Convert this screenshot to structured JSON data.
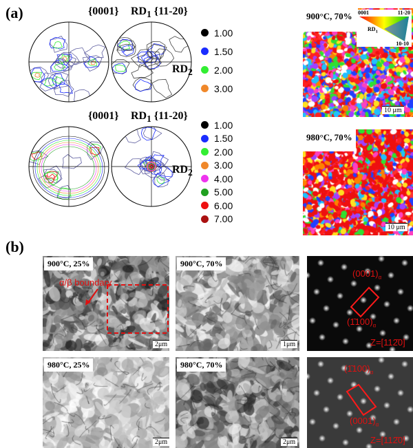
{
  "panel_a": {
    "label": "(a)",
    "row1": {
      "pf1_title": "{0001}",
      "pf2_title_rd": "RD",
      "pf2_title_sub": "1",
      "pf2_title_plane": "{11-20}",
      "rd2": "RD",
      "rd2_sub": "2",
      "legend": [
        {
          "value": "1.00",
          "color": "#000000"
        },
        {
          "value": "1.50",
          "color": "#1a2cff"
        },
        {
          "value": "2.00",
          "color": "#33ee33"
        },
        {
          "value": "3.00",
          "color": "#f0882a"
        }
      ],
      "map_label": "900°C, 70%",
      "scale_bar": "10 μm",
      "ipf_key": {
        "corner_0001": "0001",
        "corner_11_20": "11-20",
        "corner_10_10": "10-10",
        "axis": "RD",
        "axis_sub": "1"
      }
    },
    "row2": {
      "pf1_title": "{0001}",
      "pf2_title_rd": "RD",
      "pf2_title_sub": "1",
      "pf2_title_plane": "{11-20}",
      "rd2": "RD",
      "rd2_sub": "2",
      "legend": [
        {
          "value": "1.00",
          "color": "#000000"
        },
        {
          "value": "1.50",
          "color": "#1a2cff"
        },
        {
          "value": "2.00",
          "color": "#33ee33"
        },
        {
          "value": "3.00",
          "color": "#f0882a"
        },
        {
          "value": "4.00",
          "color": "#ee33ee"
        },
        {
          "value": "5.00",
          "color": "#20a020"
        },
        {
          "value": "6.00",
          "color": "#ee1111"
        },
        {
          "value": "7.00",
          "color": "#aa1010"
        }
      ],
      "map_label": "980°C, 70%",
      "scale_bar": "10 μm"
    }
  },
  "panel_b": {
    "label": "(b)",
    "images": [
      {
        "label": "900°C, 25%",
        "scale": "2μm",
        "annotation": "α/β boundary"
      },
      {
        "label": "900°C, 70%",
        "scale": "1μm"
      },
      {
        "label": "980°C, 25%",
        "scale": "2μm"
      },
      {
        "label": "980°C, 70%",
        "scale": "2μm"
      }
    ],
    "saed_top": {
      "spot1": "(0001)",
      "spot1_sub": "α",
      "spot2": "(1̄100)",
      "spot2_sub": "α",
      "zone": "Z=[112̄0]"
    },
    "saed_bottom": {
      "spot1": "(1̄100)",
      "spot1_sub": "α",
      "spot2": "(0001)",
      "spot2_sub": "α",
      "zone": "Z=[112̄0]"
    }
  },
  "colors": {
    "annotation_red": "#e01010"
  }
}
